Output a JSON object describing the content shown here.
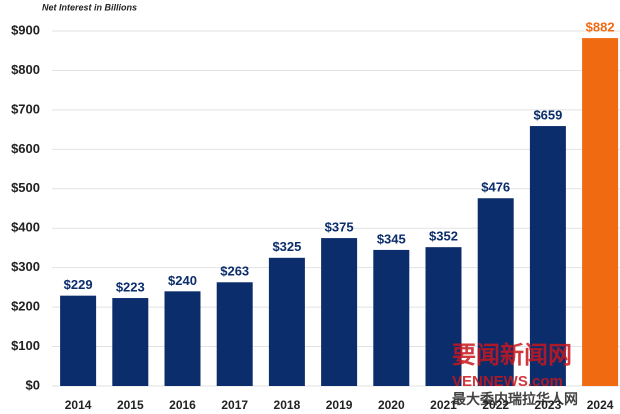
{
  "chart_data": {
    "type": "bar",
    "axis_label": "Net Interest in Billions",
    "categories": [
      "2014",
      "2015",
      "2016",
      "2017",
      "2018",
      "2019",
      "2020",
      "2021",
      "2022",
      "2023",
      "2024"
    ],
    "values": [
      229,
      223,
      240,
      263,
      325,
      375,
      345,
      352,
      476,
      659,
      882
    ],
    "value_labels": [
      "$229",
      "$223",
      "$240",
      "$263",
      "$325",
      "$375",
      "$345",
      "$352",
      "$476",
      "$659",
      "$882"
    ],
    "colors": [
      "#0c2d6b",
      "#0c2d6b",
      "#0c2d6b",
      "#0c2d6b",
      "#0c2d6b",
      "#0c2d6b",
      "#0c2d6b",
      "#0c2d6b",
      "#0c2d6b",
      "#0c2d6b",
      "#f06a12"
    ],
    "ylim": [
      0,
      900
    ],
    "yticks": [
      {
        "value": 0,
        "label": "$0"
      },
      {
        "value": 100,
        "label": "$100"
      },
      {
        "value": 200,
        "label": "$200"
      },
      {
        "value": 300,
        "label": "$300"
      },
      {
        "value": 400,
        "label": "$400"
      },
      {
        "value": 500,
        "label": "$500"
      },
      {
        "value": 600,
        "label": "$600"
      },
      {
        "value": 700,
        "label": "$700"
      },
      {
        "value": 800,
        "label": "$800"
      },
      {
        "value": 900,
        "label": "$900"
      }
    ],
    "grid": true
  },
  "watermark": {
    "logo": "要闻新闻网",
    "site": "VENNEWS.com",
    "slogan": "最大委内瑞拉华人网"
  }
}
